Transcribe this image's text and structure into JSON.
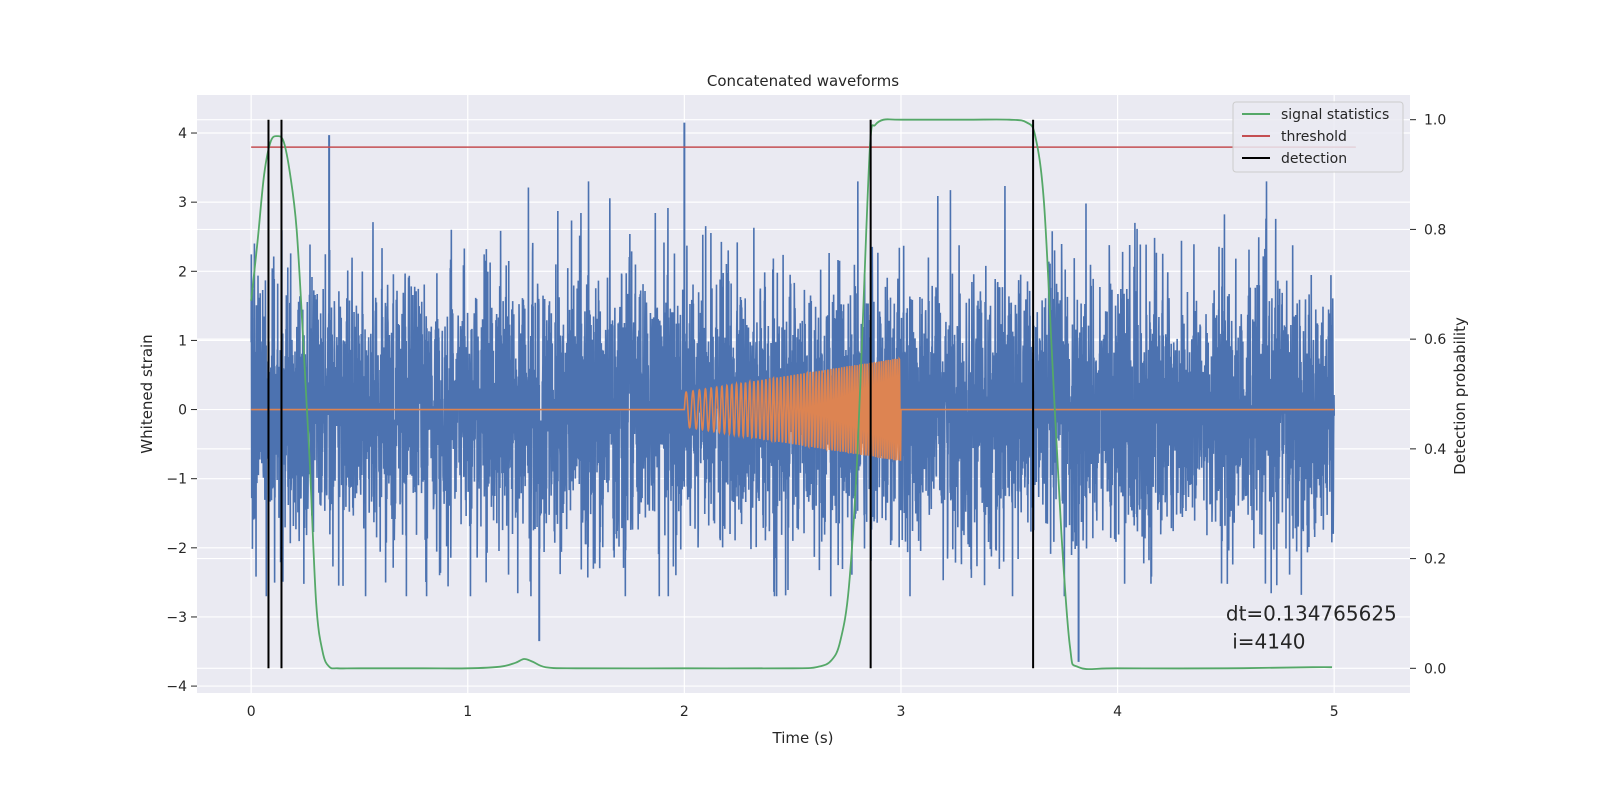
{
  "chart_data": {
    "type": "line",
    "title": "Concatenated waveforms",
    "xlabel": "Time (s)",
    "ylabel_left": "Whitened strain",
    "ylabel_right": "Detection probability",
    "xlim": [
      -0.25,
      5.35
    ],
    "ylim_left": [
      -4.1,
      4.55
    ],
    "ylim_right": [
      -0.045,
      1.045
    ],
    "x_ticks": [
      0,
      1,
      2,
      3,
      4,
      5
    ],
    "y_ticks_left": [
      -4,
      -3,
      -2,
      -1,
      0,
      1,
      2,
      3,
      4
    ],
    "y_ticks_right": [
      0.0,
      0.2,
      0.4,
      0.6,
      0.8,
      1.0
    ],
    "grid": true,
    "legend_position": "top-right",
    "series": [
      {
        "name": "signal statistics",
        "axis": "right",
        "color": "#55a868",
        "x": [
          0.0,
          0.03,
          0.06,
          0.09,
          0.12,
          0.15,
          0.18,
          0.21,
          0.24,
          0.27,
          0.3,
          0.33,
          0.36,
          0.4,
          0.5,
          0.8,
          1.0,
          1.15,
          1.22,
          1.26,
          1.3,
          1.36,
          1.5,
          2.0,
          2.5,
          2.62,
          2.68,
          2.72,
          2.76,
          2.8,
          2.84,
          2.86,
          2.88,
          2.92,
          3.0,
          3.3,
          3.5,
          3.58,
          3.62,
          3.66,
          3.7,
          3.74,
          3.78,
          3.82,
          4.0,
          4.5,
          4.9,
          4.99
        ],
        "y": [
          0.67,
          0.78,
          0.9,
          0.96,
          0.97,
          0.96,
          0.9,
          0.8,
          0.6,
          0.38,
          0.12,
          0.03,
          0.003,
          0.0,
          0.0,
          0.0,
          0.0,
          0.003,
          0.01,
          0.017,
          0.012,
          0.002,
          0.0,
          0.0,
          0.0,
          0.003,
          0.015,
          0.05,
          0.15,
          0.4,
          0.8,
          0.97,
          0.99,
          1.0,
          1.0,
          1.0,
          1.0,
          0.995,
          0.97,
          0.85,
          0.55,
          0.25,
          0.04,
          0.002,
          0.0,
          0.0,
          0.002,
          0.002
        ]
      },
      {
        "name": "threshold",
        "axis": "right",
        "color": "#c44e52",
        "x": [
          0.0,
          5.1
        ],
        "y": [
          0.95,
          0.95
        ]
      },
      {
        "name": "detection",
        "axis": "right",
        "color": "#000000",
        "x_positions": [
          0.08,
          0.14,
          2.86,
          3.61
        ],
        "y_range": [
          0,
          1
        ]
      },
      {
        "name": "",
        "axis": "left",
        "color": "#4c72b0",
        "x_range": [
          0,
          5
        ],
        "amplitude_sd": 0.95,
        "spikes": [
          {
            "x": 0.36,
            "y": 3.97
          },
          {
            "x": 2.0,
            "y": 4.15
          },
          {
            "x": 1.33,
            "y": -3.35
          },
          {
            "x": 3.82,
            "y": -3.65
          }
        ]
      },
      {
        "name": "",
        "axis": "left",
        "color": "#dd8452",
        "chirp_start": 2.0,
        "chirp_end": 3.0,
        "amplitude_start": 0.25,
        "amplitude_end": 0.75,
        "x_range": [
          0,
          5
        ]
      }
    ],
    "annotations": [
      {
        "text_lines": [
          "dt=0.134765625",
          " i=4140"
        ],
        "x": 4.5,
        "y_left": -3.05
      }
    ]
  }
}
